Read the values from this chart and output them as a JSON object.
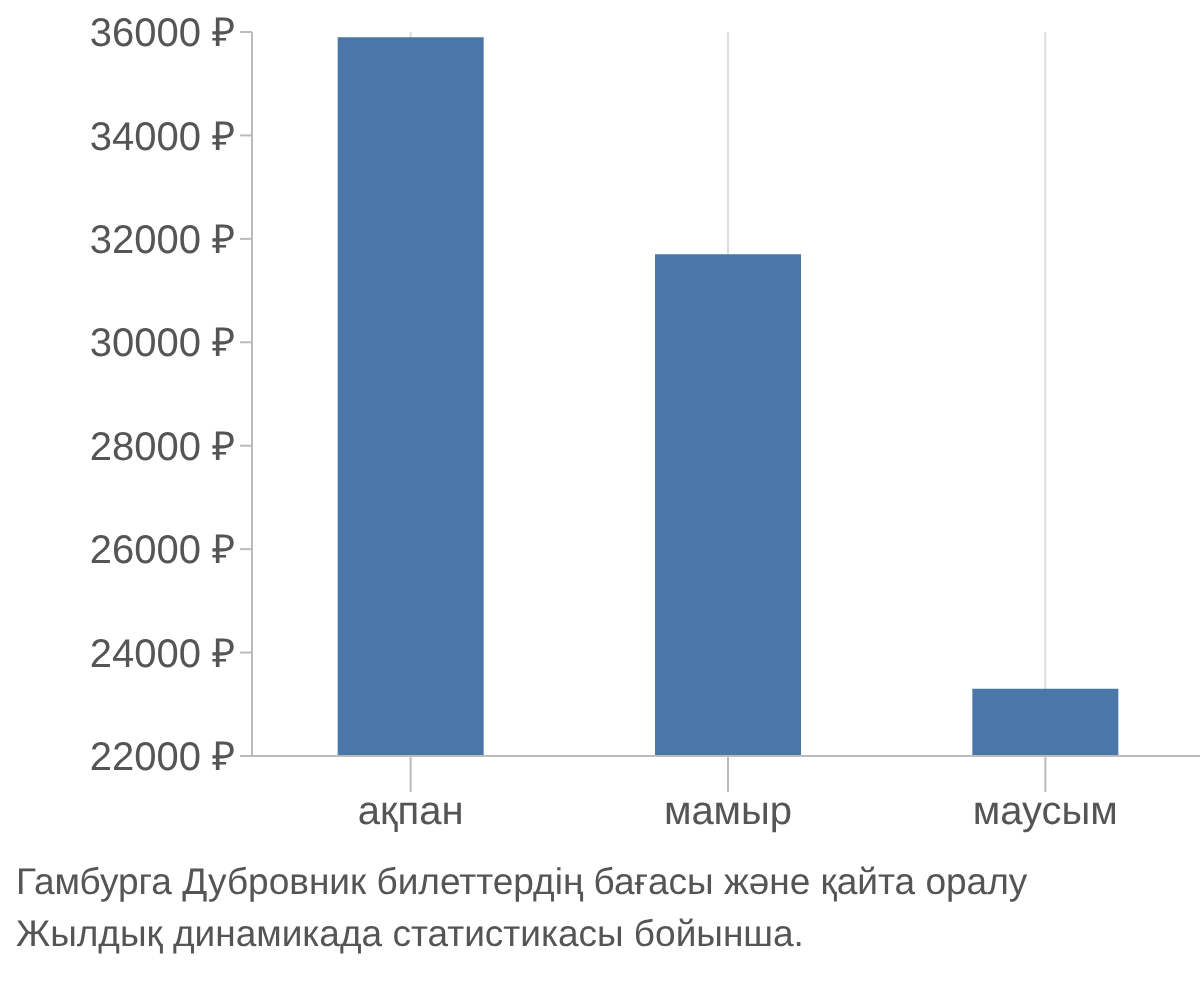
{
  "chart_data": {
    "type": "bar",
    "categories": [
      "ақпан",
      "мамыр",
      "маусым"
    ],
    "values": [
      35900,
      31700,
      23300
    ],
    "color": "#4a76a8",
    "ylim": [
      22000,
      36000
    ],
    "yticks": [
      {
        "value": 22000,
        "label": "22000 ₽"
      },
      {
        "value": 24000,
        "label": "24000 ₽"
      },
      {
        "value": 26000,
        "label": "26000 ₽"
      },
      {
        "value": 28000,
        "label": "28000 ₽"
      },
      {
        "value": 30000,
        "label": "30000 ₽"
      },
      {
        "value": 32000,
        "label": "32000 ₽"
      },
      {
        "value": 34000,
        "label": "34000 ₽"
      },
      {
        "value": 36000,
        "label": "36000 ₽"
      }
    ],
    "grid": "x",
    "annotations": [
      "Гамбурга Дубровник билеттердің бағасы және қайта оралу",
      "Жылдық динамикада статистикасы бойынша."
    ]
  }
}
